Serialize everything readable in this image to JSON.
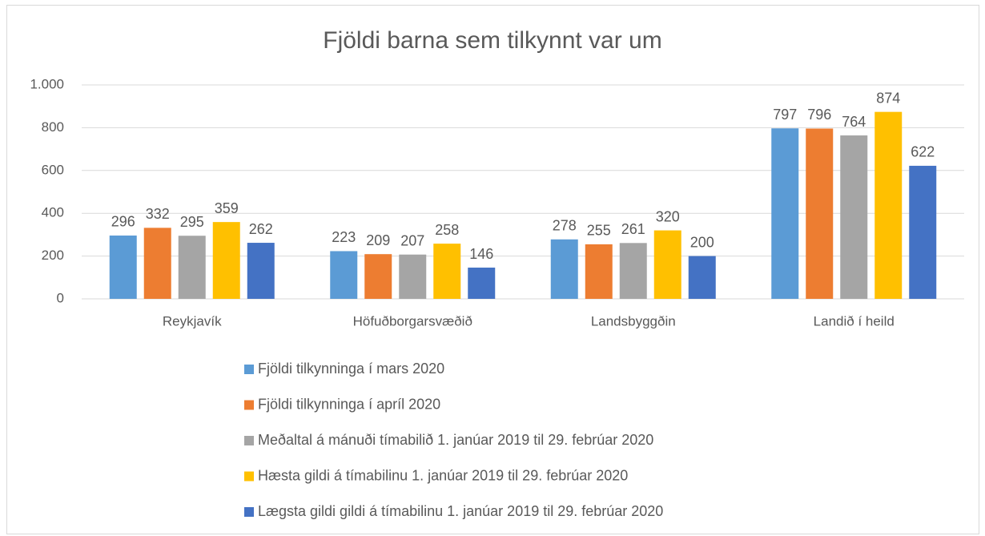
{
  "chart_data": {
    "type": "bar",
    "title": "Fjöldi barna sem tilkynnt var um",
    "categories": [
      "Reykjavík",
      "Höfuðborgarsvæðið",
      "Landsbyggðin",
      "Landið í heild"
    ],
    "series": [
      {
        "name": "Fjöldi tilkynninga í mars 2020",
        "color": "#5b9bd5",
        "values": [
          296,
          223,
          278,
          797
        ]
      },
      {
        "name": "Fjöldi tilkynninga í apríl 2020",
        "color": "#ed7d31",
        "values": [
          332,
          209,
          255,
          796
        ]
      },
      {
        "name": "Meðaltal á mánuði tímabilið 1. janúar 2019 til 29. febrúar 2020",
        "color": "#a5a5a5",
        "values": [
          295,
          207,
          261,
          764
        ]
      },
      {
        "name": "Hæsta gildi á tímabilinu 1. janúar 2019 til 29. febrúar 2020",
        "color": "#ffc000",
        "values": [
          359,
          258,
          320,
          874
        ]
      },
      {
        "name": "Lægsta gildi gildi á tímabilinu 1. janúar 2019 til 29. febrúar 2020",
        "color": "#4472c4",
        "values": [
          262,
          146,
          200,
          622
        ]
      }
    ],
    "ylim": [
      0,
      1000
    ],
    "yticks": [
      0,
      200,
      400,
      600,
      800,
      {
        "value": 1000,
        "label": "1.000"
      }
    ],
    "grid": true,
    "legend": "bottom"
  }
}
